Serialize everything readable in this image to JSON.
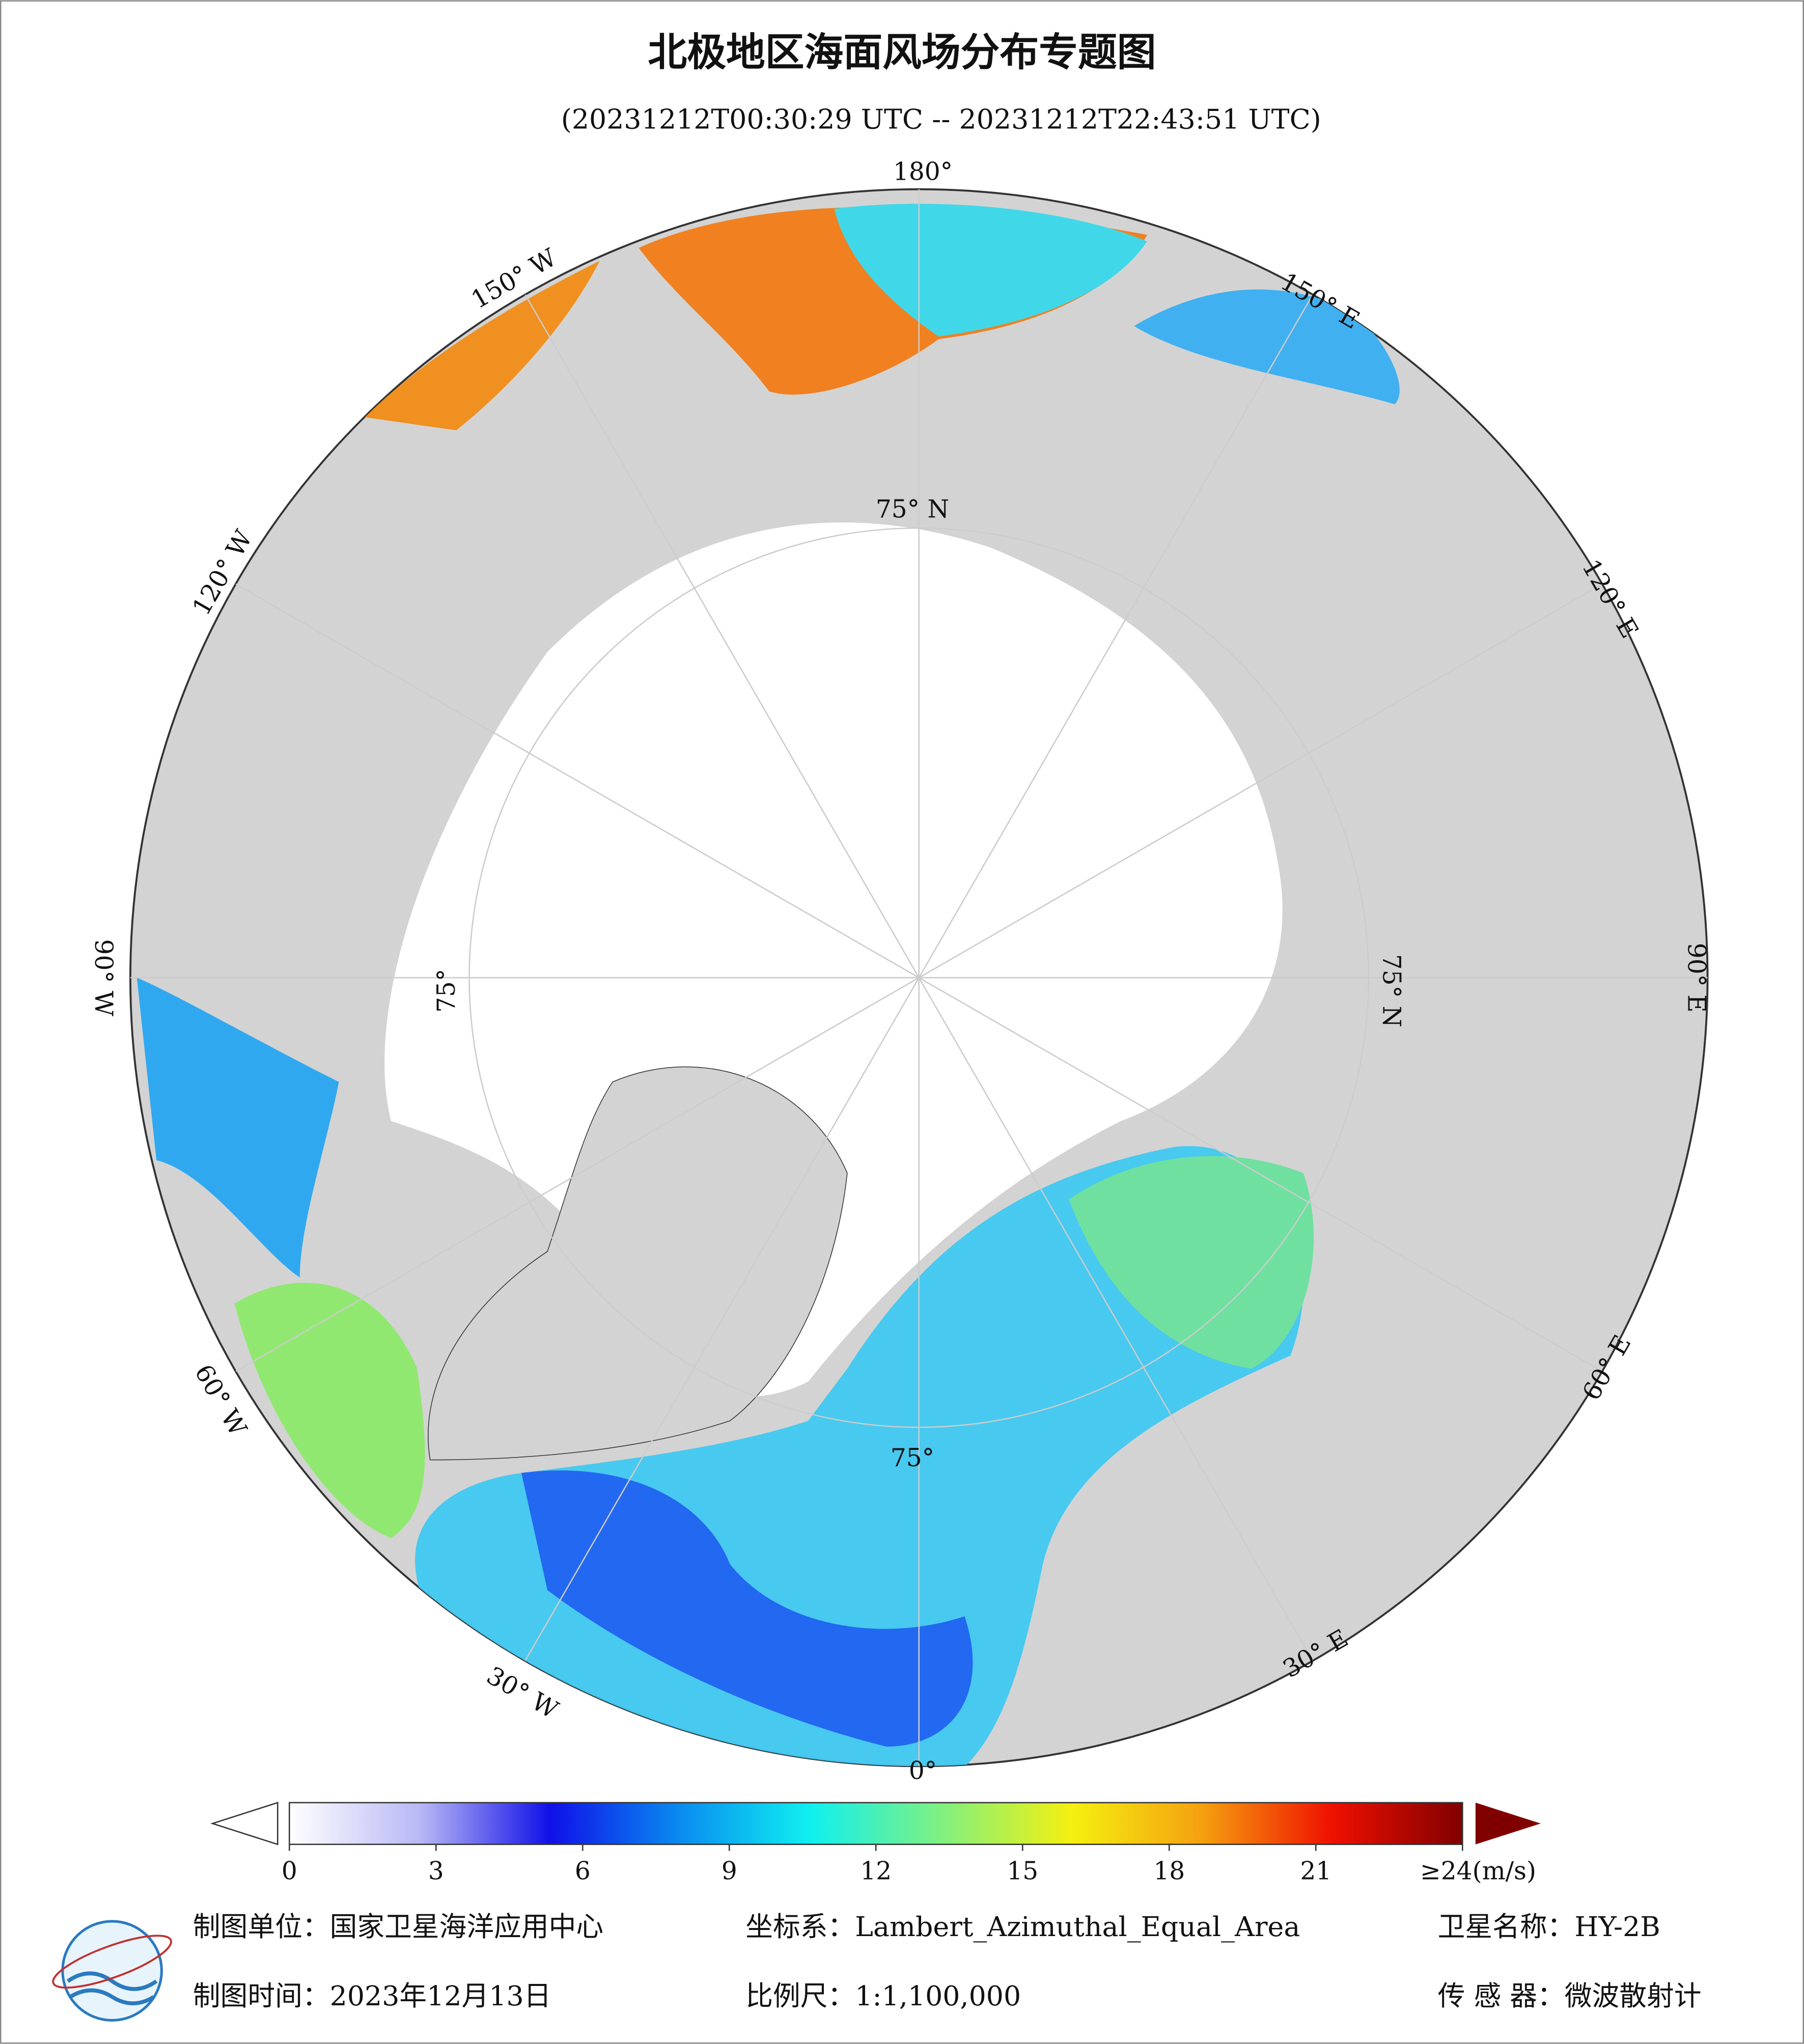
{
  "title": "北极地区海面风场分布专题图",
  "subtitle": "(20231212T00:30:29 UTC -- 20231212T22:43:51 UTC)",
  "map": {
    "lon_labels": [
      "180°",
      "150° W",
      "120° W",
      "90° W",
      "60° W",
      "30° W",
      "0°",
      "30° E",
      "60° E",
      "90° E",
      "120° E",
      "150° E"
    ],
    "lat_labels": [
      "75° N",
      "75° N",
      "75°",
      "75°"
    ]
  },
  "colorbar": {
    "range": [
      0,
      24
    ],
    "ticks": [
      0,
      3,
      6,
      9,
      12,
      15,
      18,
      21,
      {
        "value": 24,
        "label": "≥24(m/s)"
      }
    ],
    "colors": [
      "#ffffff",
      "#b8b8f5",
      "#1010e8",
      "#0a8cf0",
      "#10f0f0",
      "#80f080",
      "#f5f010",
      "#f5a010",
      "#f01000",
      "#800000"
    ]
  },
  "footer": {
    "unit": "制图单位：国家卫星海洋应用中心",
    "projection": "坐标系：Lambert_Azimuthal_Equal_Area",
    "satellite": "卫星名称：HY-2B",
    "date": "制图时间：2023年12月13日",
    "scale": "比例尺：1:1,100,000",
    "sensor": "传 感 器：微波散射计"
  }
}
